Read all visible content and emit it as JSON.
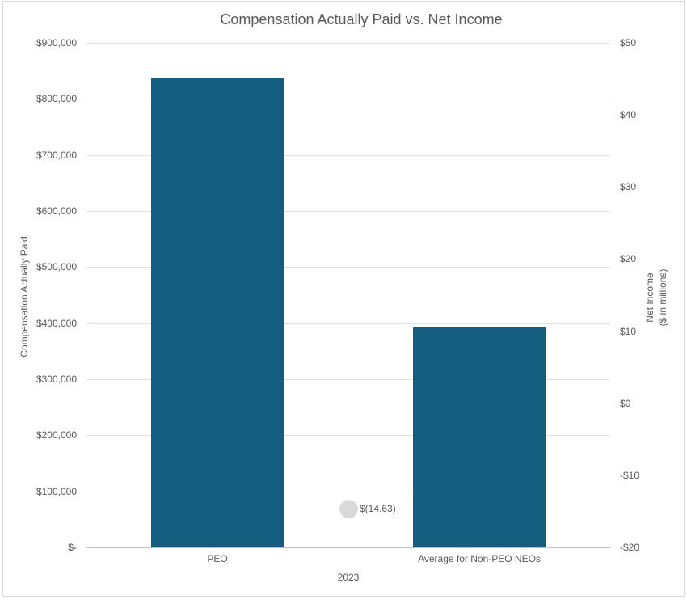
{
  "chart_data": {
    "type": "bar",
    "subtype": "combo-bar-with-point",
    "title": "Compensation Actually Paid vs. Net Income",
    "x_group_label": "2023",
    "categories": [
      "PEO",
      "Average for Non-PEO NEOs"
    ],
    "series": [
      {
        "name": "Compensation Actually Paid",
        "type": "bar",
        "axis": "left",
        "values": [
          838000,
          392000
        ],
        "color": "#135E7E"
      },
      {
        "name": "Net Income",
        "type": "point",
        "axis": "right",
        "values": [
          -14.63
        ],
        "data_label": "$(14.63)",
        "color": "#D9D9D9"
      }
    ],
    "left_axis": {
      "title": "Compensation Actually Paid",
      "min": 0,
      "max": 900000,
      "step": 100000,
      "tick_labels": [
        "$900,000",
        "$800,000",
        "$700,000",
        "$600,000",
        "$500,000",
        "$400,000",
        "$300,000",
        "$200,000",
        "$100,000",
        "$-"
      ]
    },
    "right_axis": {
      "title_line1": "Net Income",
      "title_line2": "($ in millions)",
      "min": -20,
      "max": 50,
      "step": 10,
      "tick_labels": [
        "$50",
        "$40",
        "$30",
        "$20",
        "$10",
        "$0",
        "-$10",
        "-$20"
      ]
    },
    "colors": {
      "bar": "#135E7E",
      "point": "#D9D9D9",
      "gridline": "#E2E2E2",
      "axis_line": "#BFBFBF",
      "text": "#595959",
      "border": "#D9D9D9"
    },
    "grid": true,
    "legend": "none"
  }
}
